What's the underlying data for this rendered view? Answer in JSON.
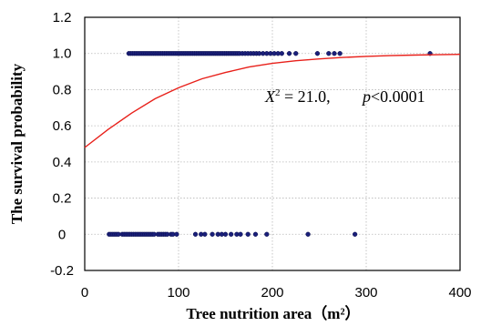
{
  "chart_data": {
    "type": "scatter",
    "xlabel": "Tree nutrition area（m²）",
    "ylabel": "The survival probability",
    "xlim": [
      0,
      400
    ],
    "ylim": [
      -0.2,
      1.2
    ],
    "x_ticks": [
      "0",
      "100",
      "200",
      "300",
      "400"
    ],
    "y_ticks": [
      "-0.2",
      "0",
      "0.2",
      "0.4",
      "0.6",
      "0.8",
      "1.0",
      "1.2"
    ],
    "grid": true,
    "annotation": {
      "chi_label": "X",
      "chi_sup": "2",
      "chi_value": " = 21.0,",
      "p_label": "p",
      "p_value": "<0.0001"
    },
    "curve_color": "#e8201a",
    "point_color": "#1a1f7a",
    "logistic_curve": {
      "description_only": false,
      "x": [
        0,
        25,
        50,
        75,
        100,
        125,
        150,
        175,
        200,
        225,
        250,
        275,
        300,
        325,
        350,
        375,
        400
      ],
      "y": [
        0.48,
        0.58,
        0.67,
        0.75,
        0.81,
        0.86,
        0.895,
        0.925,
        0.945,
        0.96,
        0.97,
        0.978,
        0.984,
        0.988,
        0.991,
        0.993,
        0.995
      ]
    },
    "series": [
      {
        "values_x": [
          47,
          49,
          51,
          53,
          55,
          57,
          59,
          61,
          63,
          65,
          67,
          69,
          71,
          73,
          75,
          77,
          79,
          81,
          83,
          85,
          87,
          89,
          91,
          93,
          95,
          97,
          99,
          101,
          103,
          105,
          107,
          109,
          111,
          113,
          115,
          117,
          119,
          121,
          123,
          125,
          127,
          129,
          131,
          133,
          135,
          137,
          139,
          141,
          143,
          145,
          147,
          149,
          151,
          153,
          155,
          157,
          159,
          161,
          163,
          165,
          168,
          171,
          174,
          177,
          180,
          183,
          186,
          190,
          194,
          198,
          202,
          206,
          210,
          218,
          225,
          248,
          260,
          266,
          272,
          368
        ],
        "values_y": 1.0
      },
      {
        "values_x": [
          26,
          28,
          30,
          32,
          34,
          36,
          40,
          42,
          44,
          46,
          48,
          50,
          52,
          54,
          56,
          58,
          60,
          62,
          64,
          66,
          68,
          70,
          72,
          74,
          78,
          80,
          82,
          84,
          86,
          88,
          92,
          94,
          98,
          118,
          124,
          128,
          136,
          142,
          146,
          150,
          156,
          162,
          166,
          174,
          182,
          194,
          238,
          288
        ],
        "values_y": 0.0
      }
    ]
  }
}
